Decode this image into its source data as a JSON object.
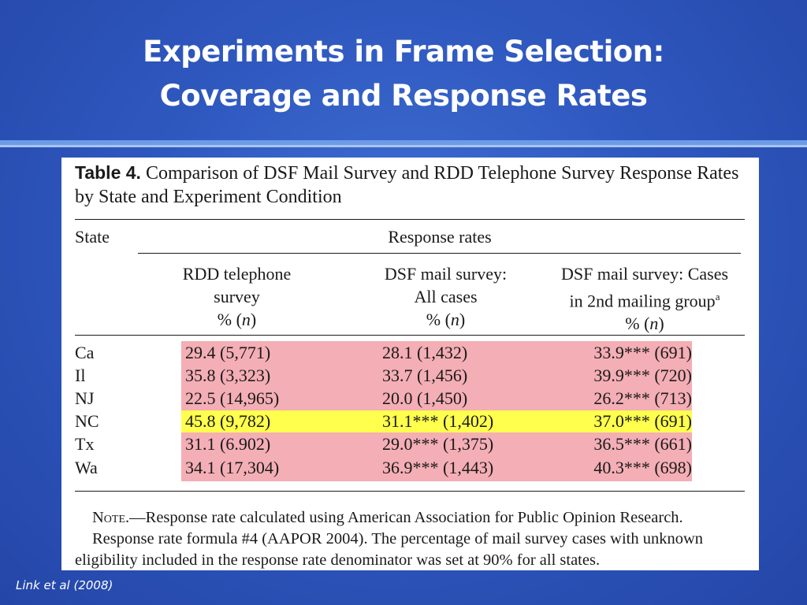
{
  "slide": {
    "title_line1": "Experiments in Frame Selection:",
    "title_line2": "Coverage and Response Rates",
    "citation": "Link et al (2008)"
  },
  "table": {
    "label": "Table 4.",
    "caption": "Comparison of DSF Mail Survey and RDD Telephone Survey Response Rates by State and Experiment Condition",
    "state_header": "State",
    "group_header": "Response rates",
    "columns": [
      {
        "line1": "RDD telephone",
        "line2": "survey",
        "line3_pre": "% (",
        "line3_var": "n",
        "line3_post": ")"
      },
      {
        "line1": "DSF mail survey:",
        "line2": "All cases",
        "line3_pre": "% (",
        "line3_var": "n",
        "line3_post": ")"
      },
      {
        "line1": "DSF mail survey: Cases",
        "line2": "in 2nd mailing group",
        "line2_sup": "a",
        "line3_pre": "% (",
        "line3_var": "n",
        "line3_post": ")"
      }
    ],
    "rows": [
      {
        "state": "Ca",
        "rdd": "29.4 (5,771)",
        "dsf_all": "28.1 (1,432)",
        "dsf_2nd": "33.9*** (691)",
        "highlight": "pink"
      },
      {
        "state": "Il",
        "rdd": "35.8 (3,323)",
        "dsf_all": "33.7 (1,456)",
        "dsf_2nd": "39.9*** (720)",
        "highlight": "pink"
      },
      {
        "state": "NJ",
        "rdd": "22.5 (14,965)",
        "dsf_all": "20.0 (1,450)",
        "dsf_2nd": "26.2*** (713)",
        "highlight": "pink"
      },
      {
        "state": "NC",
        "rdd": "45.8 (9,782)",
        "dsf_all": "31.1*** (1,402)",
        "dsf_2nd": "37.0*** (691)",
        "highlight": "yellow"
      },
      {
        "state": "Tx",
        "rdd": "31.1 (6.902)",
        "dsf_all": "29.0*** (1,375)",
        "dsf_2nd": "36.5*** (661)",
        "highlight": "pink"
      },
      {
        "state": "Wa",
        "rdd": "34.1 (17,304)",
        "dsf_all": "36.9*** (1,443)",
        "dsf_2nd": "40.3*** (698)",
        "highlight": "pink"
      }
    ],
    "note_label": "Note.",
    "note_text_1": "—Response rate calculated using American Association for Public Opinion Research.",
    "note_text_2": "Response rate formula #4 (AAPOR 2004). The percentage of mail survey cases with unknown",
    "note_text_3": "eligibility included in the response rate denominator was set at 90% for all states."
  },
  "colors": {
    "pink_highlight": "#f4aeb5",
    "yellow_highlight": "#ffff4d",
    "background": "#2f58bf"
  }
}
